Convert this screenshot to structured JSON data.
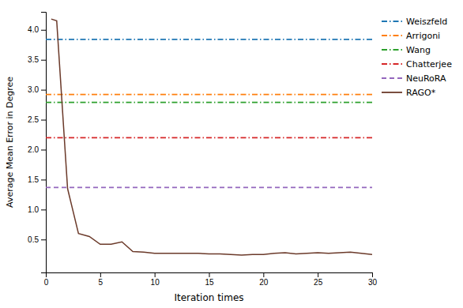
{
  "chart_data": {
    "type": "line",
    "xlabel": "Iteration times",
    "ylabel": "Average Mean Error in Degree",
    "xlim": [
      0,
      30
    ],
    "ylim": [
      -0.05,
      4.3
    ],
    "xticks": [
      0,
      5,
      10,
      15,
      20,
      25,
      30
    ],
    "yticks": [
      0.5,
      {
        "value": 1,
        "label": "1.0"
      },
      1.5,
      {
        "value": 2,
        "label": "2.0"
      },
      2.5,
      {
        "value": 3,
        "label": "3.0"
      },
      3.5,
      {
        "value": 4,
        "label": "4.0"
      }
    ],
    "grid": false,
    "legend": "upper right",
    "series": [
      {
        "name": "Weiszfeld",
        "type": "hline",
        "color": "#1f77b4",
        "line_style": "dash-dot",
        "values": [
          3.84
        ]
      },
      {
        "name": "Arrigoni",
        "type": "hline",
        "color": "#ff7f0e",
        "line_style": "dash-dot",
        "values": [
          2.92
        ]
      },
      {
        "name": "Wang",
        "type": "hline",
        "color": "#2ca02c",
        "line_style": "dash-dot",
        "values": [
          2.79
        ]
      },
      {
        "name": "Chatterjee",
        "type": "hline",
        "color": "#d62728",
        "line_style": "dash-dot",
        "values": [
          2.2
        ]
      },
      {
        "name": "NeuRoRA",
        "type": "hline",
        "color": "#9467bd",
        "line_style": "dashed",
        "values": [
          1.37
        ]
      },
      {
        "name": "RAGO*",
        "type": "line",
        "color": "#6b3a2a",
        "line_style": "solid",
        "x": [
          0.5,
          1,
          2,
          3,
          4,
          5,
          6,
          7,
          8,
          9,
          10,
          11,
          12,
          13,
          14,
          15,
          16,
          17,
          18,
          19,
          20,
          21,
          22,
          23,
          24,
          25,
          26,
          27,
          28,
          29,
          30
        ],
        "values": [
          4.18,
          4.15,
          1.35,
          0.6,
          0.55,
          0.42,
          0.42,
          0.46,
          0.3,
          0.29,
          0.27,
          0.27,
          0.27,
          0.27,
          0.27,
          0.26,
          0.26,
          0.25,
          0.24,
          0.25,
          0.25,
          0.27,
          0.28,
          0.26,
          0.27,
          0.28,
          0.27,
          0.28,
          0.29,
          0.27,
          0.25
        ]
      }
    ]
  }
}
